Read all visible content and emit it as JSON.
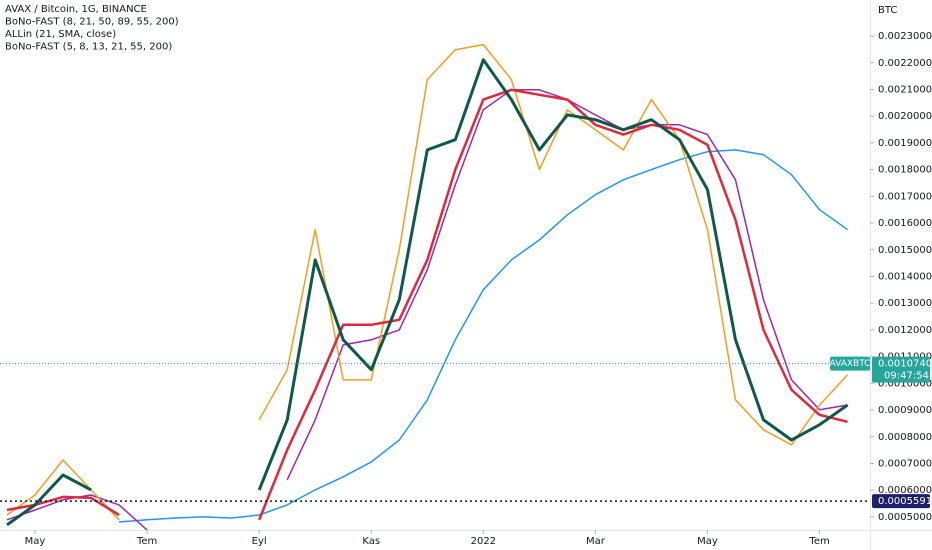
{
  "chart_data": {
    "type": "line",
    "header": [
      "AVAX / Bitcoin, 1G, BINANCE",
      "BoNo-FAST (8, 21, 50, 89, 55, 200)",
      "ALLin (21, SMA, close)",
      "BoNo-FAST (5, 8, 13, 21, 55, 200)"
    ],
    "y_axis_label": "BTC",
    "x": [
      -0.5,
      0,
      0.5,
      1,
      1.5,
      2,
      2.5,
      3,
      3.5,
      4,
      4.5,
      5,
      5.5,
      6,
      6.5,
      7,
      7.5,
      8,
      8.5,
      9,
      9.5,
      10,
      10.5,
      11,
      11.5,
      12,
      12.5,
      13,
      13.5,
      14,
      14.5
    ],
    "series": [
      {
        "color": "#2196f3",
        "width": 1.5,
        "values": [
          null,
          null,
          null,
          null,
          0.000481,
          0.000489,
          0.000496,
          0.0005,
          0.000496,
          0.000507,
          0.000545,
          0.000601,
          0.00065,
          0.000706,
          0.000788,
          0.000938,
          0.001163,
          0.00135,
          0.001462,
          0.001537,
          0.001631,
          0.001706,
          0.001762,
          0.0018,
          0.001837,
          0.001867,
          0.001874,
          0.001856,
          0.001781,
          0.00165,
          0.001575
        ]
      },
      {
        "color": "#9c27b0",
        "width": 1.5,
        "values": [
          0.000489,
          0.000526,
          0.000564,
          0.000582,
          0.000545,
          0.000451,
          null,
          null,
          null,
          null,
          0.000639,
          0.000863,
          0.001144,
          0.001163,
          0.0012,
          0.001425,
          0.001743,
          0.002024,
          0.002099,
          0.002099,
          0.002062,
          0.002005,
          0.001949,
          0.001968,
          0.001968,
          0.001931,
          0.001762,
          0.001313,
          0.001013,
          0.000901,
          0.000919
        ]
      },
      {
        "color": "#f59d1f",
        "width": 1.5,
        "values": [
          0.000507,
          0.000582,
          0.000713,
          0.000601,
          0.000489,
          null,
          null,
          null,
          null,
          0.000863,
          0.001051,
          0.001575,
          0.001013,
          0.001013,
          0.0015,
          0.002137,
          0.002249,
          0.002268,
          0.002137,
          0.0018,
          0.002024,
          0.001949,
          0.001874,
          0.002062,
          0.001912,
          0.001575,
          0.000938,
          0.000826,
          0.00077,
          0.000919,
          0.001032
        ]
      },
      {
        "color": "#e0283c",
        "width": 2.5,
        "values": [
          0.000526,
          0.000545,
          0.000575,
          0.000571,
          0.000507,
          null,
          null,
          null,
          null,
          0.000489,
          0.000751,
          0.000976,
          0.001219,
          0.001219,
          0.001238,
          0.001462,
          0.0018,
          0.002062,
          0.002099,
          0.00208,
          0.002062,
          0.001968,
          0.001931,
          0.001968,
          0.001949,
          0.001893,
          0.001612,
          0.0012,
          0.000976,
          0.000882,
          0.000856
        ]
      },
      {
        "color": "#10584a",
        "width": 3,
        "values": [
          0.00047,
          0.000545,
          0.000657,
          0.000601,
          null,
          null,
          null,
          null,
          null,
          0.000601,
          0.000863,
          0.001462,
          0.001163,
          0.001051,
          0.001313,
          0.001874,
          0.001912,
          0.002211,
          0.002062,
          0.001874,
          0.002005,
          0.001987,
          0.001949,
          0.001987,
          0.001912,
          0.001725,
          0.001163,
          0.000863,
          0.000788,
          0.000845,
          0.000919
        ]
      }
    ],
    "xlim": [
      -0.625,
      14.9
    ],
    "xticks": [
      {
        "value": 0,
        "label": "May"
      },
      {
        "value": 2,
        "label": "Tem"
      },
      {
        "value": 4,
        "label": "Eyl"
      },
      {
        "value": 6,
        "label": "Kas"
      },
      {
        "value": 8,
        "label": "2022"
      },
      {
        "value": 10,
        "label": "Mar"
      },
      {
        "value": 12,
        "label": "May"
      },
      {
        "value": 14,
        "label": "Tem"
      }
    ],
    "ylim": [
      0.000451,
      0.002435
    ],
    "yticks": [
      {
        "value": 0.0005,
        "label": "0.0005000"
      },
      {
        "value": 0.0006,
        "label": "0.0006000"
      },
      {
        "value": 0.0007,
        "label": "0.0007000"
      },
      {
        "value": 0.0008,
        "label": "0.0008000"
      },
      {
        "value": 0.0009,
        "label": "0.0009000"
      },
      {
        "value": 0.001,
        "label": "0.0010000"
      },
      {
        "value": 0.0011,
        "label": "0.0011000"
      },
      {
        "value": 0.0012,
        "label": "0.0012000"
      },
      {
        "value": 0.0013,
        "label": "0.0013000"
      },
      {
        "value": 0.0014,
        "label": "0.0014000"
      },
      {
        "value": 0.0015,
        "label": "0.0015000"
      },
      {
        "value": 0.0016,
        "label": "0.0016000"
      },
      {
        "value": 0.0017,
        "label": "0.0017000"
      },
      {
        "value": 0.0018,
        "label": "0.0018000"
      },
      {
        "value": 0.0019,
        "label": "0.0019000"
      },
      {
        "value": 0.002,
        "label": "0.0020000"
      },
      {
        "value": 0.0021,
        "label": "0.0021000"
      },
      {
        "value": 0.0022,
        "label": "0.0022000"
      },
      {
        "value": 0.0023,
        "label": "0.0023000"
      }
    ],
    "grid": false,
    "last_price": {
      "symbol": "AVAXBTC",
      "value": 0.001074,
      "label": "0.0010740",
      "countdown": "09:47:54",
      "color": "#26a69a"
    },
    "alert_line": {
      "value": 0.0005591,
      "label": "0.0005591",
      "color": "#1e1f6b"
    }
  }
}
